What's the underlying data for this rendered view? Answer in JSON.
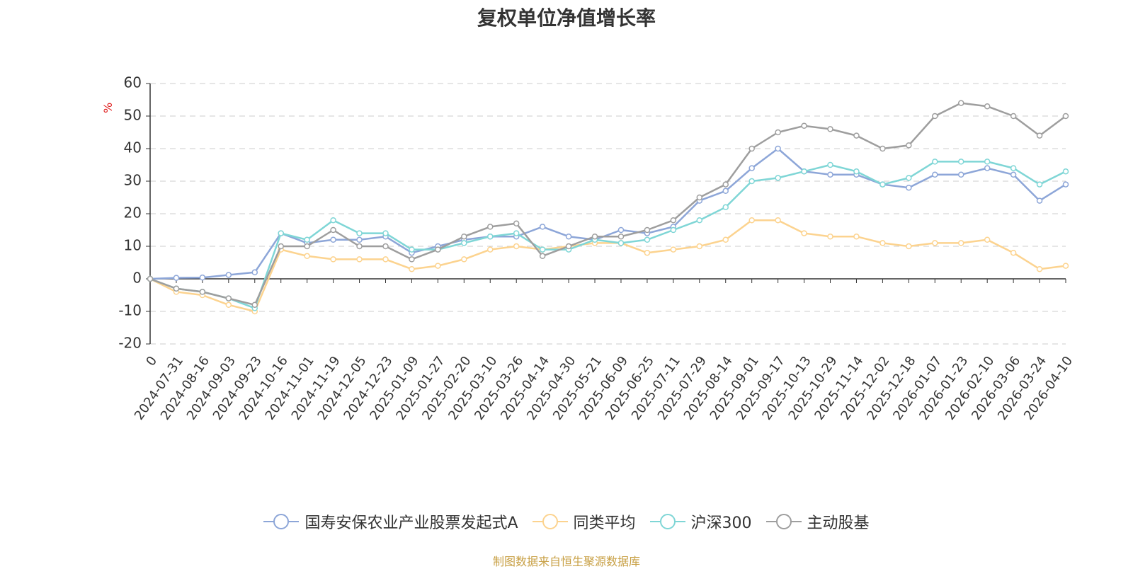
{
  "chart_data": {
    "type": "line",
    "title": "复权单位净值增长率",
    "ylabel": "%",
    "ylim": [
      -20,
      60
    ],
    "yticks": [
      -20,
      -10,
      0,
      10,
      20,
      30,
      40,
      50,
      60
    ],
    "grid": true,
    "legend_position": "bottom",
    "source": "制图数据来自恒生聚源数据库",
    "x": [
      "0",
      "2024-07-31",
      "2024-08-16",
      "2024-09-03",
      "2024-09-23",
      "2024-10-16",
      "2024-11-01",
      "2024-11-19",
      "2024-12-05",
      "2024-12-23",
      "2025-01-09",
      "2025-01-27",
      "2025-02-20",
      "2025-03-10",
      "2025-03-26",
      "2025-04-14",
      "2025-04-30",
      "2025-05-21",
      "2025-06-09",
      "2025-06-25",
      "2025-07-11",
      "2025-07-29",
      "2025-08-14",
      "2025-09-01",
      "2025-09-17",
      "2025-10-13",
      "2025-10-29",
      "2025-11-14",
      "2025-12-02",
      "2025-12-18",
      "2026-01-07",
      "2026-01-23",
      "2026-02-10",
      "2026-03-06",
      "2026-03-24",
      "2026-04-10"
    ],
    "series": [
      {
        "name": "国寿安保农业产业股票发起式A",
        "color": "#8da6d8",
        "values": [
          0,
          0.3,
          0.4,
          1.2,
          2,
          14,
          11,
          12,
          12,
          13,
          8,
          10,
          12,
          13,
          13,
          16,
          13,
          12,
          15,
          14,
          16,
          24,
          27,
          34,
          40,
          33,
          32,
          32,
          29,
          28,
          32,
          32,
          34,
          32,
          24,
          29
        ]
      },
      {
        "name": "同类平均",
        "color": "#fcd38f",
        "values": [
          0,
          -4,
          -5,
          -8,
          -10,
          9,
          7,
          6,
          6,
          6,
          3,
          4,
          6,
          9,
          10,
          9,
          10,
          11,
          11,
          8,
          9,
          10,
          12,
          18,
          18,
          14,
          13,
          13,
          11,
          10,
          11,
          11,
          12,
          8,
          3,
          4
        ]
      },
      {
        "name": "沪深300",
        "color": "#7fd6d6",
        "values": [
          0,
          -3,
          -4,
          -6,
          -9,
          14,
          12,
          18,
          14,
          14,
          9,
          9,
          11,
          13,
          14,
          9,
          9,
          12,
          11,
          12,
          15,
          18,
          22,
          30,
          31,
          33,
          35,
          33,
          29,
          31,
          36,
          36,
          36,
          34,
          29,
          33
        ]
      },
      {
        "name": "主动股基",
        "color": "#9e9e9e",
        "values": [
          0,
          -3,
          -4,
          -6,
          -8,
          10,
          10,
          15,
          10,
          10,
          6,
          9,
          13,
          16,
          17,
          7,
          10,
          13,
          13,
          15,
          18,
          25,
          29,
          40,
          45,
          47,
          46,
          44,
          40,
          41,
          50,
          54,
          53,
          50,
          44,
          50
        ]
      }
    ]
  }
}
